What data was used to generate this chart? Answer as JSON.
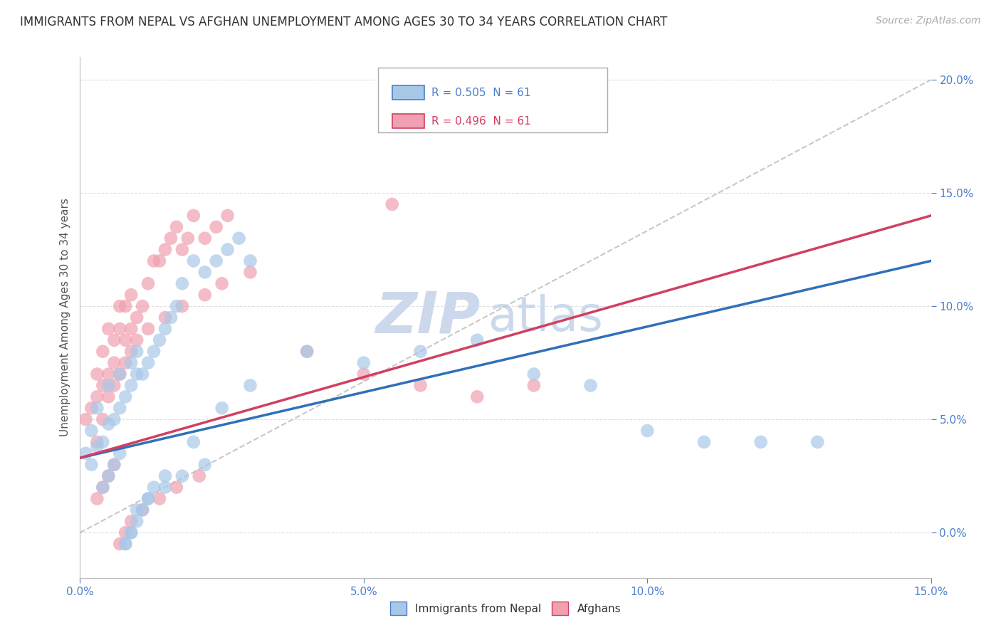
{
  "title": "IMMIGRANTS FROM NEPAL VS AFGHAN UNEMPLOYMENT AMONG AGES 30 TO 34 YEARS CORRELATION CHART",
  "source": "Source: ZipAtlas.com",
  "ylabel": "Unemployment Among Ages 30 to 34 years",
  "legend_nepal": "Immigrants from Nepal",
  "legend_afghan": "Afghans",
  "R_nepal": 0.505,
  "N_nepal": 61,
  "R_afghan": 0.496,
  "N_afghan": 61,
  "nepal_color": "#a8c8e8",
  "afghan_color": "#f0a0b0",
  "nepal_line_color": "#3070b8",
  "afghan_line_color": "#d04060",
  "ref_line_color": "#c8c8c8",
  "background_color": "#ffffff",
  "grid_color": "#e0e0e0",
  "xlim": [
    0.0,
    0.15
  ],
  "ylim": [
    -0.02,
    0.21
  ],
  "watermark_main": "ZIP",
  "watermark_sub": "atlas",
  "watermark_color": "#ccd8ec",
  "title_fontsize": 12,
  "axis_label_fontsize": 11,
  "tick_fontsize": 11,
  "legend_fontsize": 11,
  "source_fontsize": 10,
  "nepal_x": [
    0.001,
    0.002,
    0.002,
    0.003,
    0.003,
    0.004,
    0.005,
    0.005,
    0.006,
    0.007,
    0.007,
    0.008,
    0.009,
    0.009,
    0.01,
    0.01,
    0.011,
    0.012,
    0.013,
    0.014,
    0.015,
    0.016,
    0.017,
    0.018,
    0.02,
    0.022,
    0.024,
    0.026,
    0.028,
    0.03,
    0.008,
    0.009,
    0.01,
    0.011,
    0.012,
    0.013,
    0.015,
    0.02,
    0.025,
    0.03,
    0.04,
    0.05,
    0.06,
    0.07,
    0.08,
    0.09,
    0.1,
    0.11,
    0.12,
    0.13,
    0.004,
    0.005,
    0.006,
    0.007,
    0.008,
    0.009,
    0.01,
    0.012,
    0.015,
    0.018,
    0.022
  ],
  "nepal_y": [
    0.035,
    0.03,
    0.045,
    0.038,
    0.055,
    0.04,
    0.048,
    0.065,
    0.05,
    0.055,
    0.07,
    0.06,
    0.065,
    0.075,
    0.07,
    0.08,
    0.07,
    0.075,
    0.08,
    0.085,
    0.09,
    0.095,
    0.1,
    0.11,
    0.12,
    0.115,
    0.12,
    0.125,
    0.13,
    0.12,
    -0.005,
    0.0,
    0.005,
    0.01,
    0.015,
    0.02,
    0.025,
    0.04,
    0.055,
    0.065,
    0.08,
    0.075,
    0.08,
    0.085,
    0.07,
    0.065,
    0.045,
    0.04,
    0.04,
    0.04,
    0.02,
    0.025,
    0.03,
    0.035,
    -0.005,
    0.0,
    0.01,
    0.015,
    0.02,
    0.025,
    0.03
  ],
  "afghan_x": [
    0.001,
    0.002,
    0.003,
    0.003,
    0.004,
    0.004,
    0.005,
    0.005,
    0.006,
    0.006,
    0.007,
    0.007,
    0.008,
    0.008,
    0.009,
    0.009,
    0.01,
    0.011,
    0.012,
    0.013,
    0.014,
    0.015,
    0.016,
    0.017,
    0.018,
    0.019,
    0.02,
    0.022,
    0.024,
    0.026,
    0.003,
    0.004,
    0.005,
    0.006,
    0.007,
    0.008,
    0.009,
    0.01,
    0.012,
    0.015,
    0.018,
    0.022,
    0.025,
    0.03,
    0.04,
    0.05,
    0.06,
    0.07,
    0.08,
    0.055,
    0.003,
    0.004,
    0.005,
    0.006,
    0.007,
    0.008,
    0.009,
    0.011,
    0.014,
    0.017,
    0.021
  ],
  "afghan_y": [
    0.05,
    0.055,
    0.06,
    0.07,
    0.065,
    0.08,
    0.07,
    0.09,
    0.075,
    0.085,
    0.09,
    0.1,
    0.085,
    0.1,
    0.09,
    0.105,
    0.095,
    0.1,
    0.11,
    0.12,
    0.12,
    0.125,
    0.13,
    0.135,
    0.125,
    0.13,
    0.14,
    0.13,
    0.135,
    0.14,
    0.04,
    0.05,
    0.06,
    0.065,
    0.07,
    0.075,
    0.08,
    0.085,
    0.09,
    0.095,
    0.1,
    0.105,
    0.11,
    0.115,
    0.08,
    0.07,
    0.065,
    0.06,
    0.065,
    0.145,
    0.015,
    0.02,
    0.025,
    0.03,
    -0.005,
    0.0,
    0.005,
    0.01,
    0.015,
    0.02,
    0.025
  ],
  "nepal_line_x": [
    0.0,
    0.15
  ],
  "nepal_line_y": [
    0.033,
    0.12
  ],
  "afghan_line_x": [
    0.0,
    0.15
  ],
  "afghan_line_y": [
    0.033,
    0.14
  ],
  "ref_line_x": [
    0.0,
    0.15
  ],
  "ref_line_y": [
    0.0,
    0.2
  ]
}
